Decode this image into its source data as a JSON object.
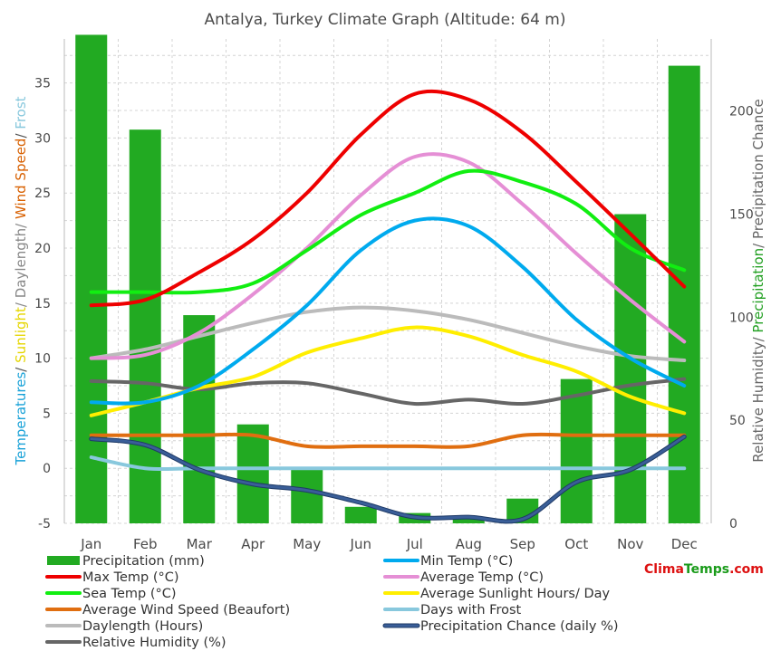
{
  "chart_data": {
    "type": "bar",
    "title": "Antalya, Turkey Climate Graph (Altitude: 64 m)",
    "brand": {
      "part1": "Clima",
      "part2": "Temps",
      "part3": ".com",
      "color1": "#dd1111",
      "color2": "#1a9b1a",
      "color3": "#dd1111"
    },
    "categories": [
      "Jan",
      "Feb",
      "Mar",
      "Apr",
      "May",
      "Jun",
      "Jul",
      "Aug",
      "Sep",
      "Oct",
      "Nov",
      "Dec"
    ],
    "left_axis": {
      "ylim": [
        -5,
        39
      ],
      "ticks": [
        "-5",
        "0",
        "5",
        "10",
        "15",
        "20",
        "25",
        "30",
        "35"
      ],
      "label_parts": [
        {
          "text": "Temperatures",
          "color": "#19a2d8"
        },
        {
          "text": "/ ",
          "color": "#555555"
        },
        {
          "text": "Sunlight",
          "color": "#e5d600"
        },
        {
          "text": "/ Daylength/ ",
          "color": "#888888"
        },
        {
          "text": "Wind Speed",
          "color": "#d86000"
        },
        {
          "text": "/ ",
          "color": "#555555"
        },
        {
          "text": "Frost",
          "color": "#88c8dd"
        }
      ]
    },
    "right_axis": {
      "ylim": [
        0,
        235
      ],
      "ticks": [
        "0",
        "50",
        "100",
        "150",
        "200"
      ],
      "label_parts": [
        {
          "text": "Relative Humidity/ ",
          "color": "#666666"
        },
        {
          "text": "Precipitation",
          "color": "#22a022"
        },
        {
          "text": "/ Precipitation Chance",
          "color": "#666666"
        }
      ]
    },
    "precipitation": {
      "name": "Precipitation (mm)",
      "color": "#22aa22",
      "values": [
        237,
        191,
        101,
        48,
        27,
        8,
        5,
        3,
        12,
        70,
        150,
        222
      ]
    },
    "lines": [
      {
        "key": "maxtemp",
        "name": "Max Temp (°C)",
        "color": "#ee0000",
        "axis": "left",
        "values": [
          14.8,
          15.3,
          17.8,
          20.8,
          25.0,
          30.3,
          34.0,
          33.5,
          30.5,
          26.0,
          21.3,
          16.5
        ]
      },
      {
        "key": "mintemp",
        "name": "Min Temp (°C)",
        "color": "#00aaee",
        "axis": "left",
        "values": [
          6.0,
          6.0,
          7.5,
          10.8,
          14.8,
          19.8,
          22.5,
          22.0,
          18.3,
          13.5,
          10.0,
          7.5
        ]
      },
      {
        "key": "seatemp",
        "name": "Sea Temp (°C)",
        "color": "#11ee11",
        "axis": "left",
        "values": [
          16.0,
          16.0,
          16.0,
          16.8,
          19.8,
          23.0,
          25.0,
          27.0,
          26.0,
          24.0,
          20.0,
          18.0
        ]
      },
      {
        "key": "avgtemp",
        "name": "Average Temp (°C)",
        "color": "#e58fd5",
        "axis": "left",
        "values": [
          10.0,
          10.3,
          12.3,
          15.8,
          20.0,
          24.8,
          28.3,
          27.8,
          24.0,
          19.5,
          15.3,
          11.5
        ]
      },
      {
        "key": "wind",
        "name": "Average Wind Speed (Beaufort)",
        "color": "#e06e10",
        "axis": "left",
        "values": [
          3.0,
          3.0,
          3.0,
          3.0,
          2.0,
          2.0,
          2.0,
          2.0,
          3.0,
          3.0,
          3.0,
          3.0
        ]
      },
      {
        "key": "sun",
        "name": "Average Sunlight Hours/ Day",
        "color": "#ffee00",
        "axis": "left",
        "values": [
          4.8,
          6.0,
          7.3,
          8.3,
          10.5,
          11.8,
          12.8,
          12.0,
          10.3,
          8.8,
          6.5,
          5.0
        ]
      },
      {
        "key": "frost",
        "name": "Days with Frost",
        "color": "#88c8dd",
        "axis": "left",
        "values": [
          1.0,
          0.0,
          0.0,
          0.0,
          0.0,
          0.0,
          0.0,
          0.0,
          0.0,
          0.0,
          0.0,
          0.0
        ]
      },
      {
        "key": "daylength",
        "name": "Daylength (Hours)",
        "color": "#bbbbbb",
        "axis": "left",
        "values": [
          10.0,
          10.8,
          12.0,
          13.2,
          14.2,
          14.6,
          14.3,
          13.5,
          12.3,
          11.1,
          10.2,
          9.8
        ]
      },
      {
        "key": "precipchance",
        "name": "Precipitation Chance (daily %)",
        "color": "#3a5e98",
        "axis": "right",
        "values": [
          41,
          38,
          26,
          19,
          16,
          10,
          3,
          3,
          2,
          20,
          26,
          42
        ]
      },
      {
        "key": "humidity",
        "name": "Relative Humidity (%)",
        "color": "#666666",
        "axis": "right",
        "values": [
          69,
          68,
          65,
          68,
          68,
          63,
          58,
          60,
          58,
          62,
          67,
          70
        ]
      }
    ],
    "legend_order": [
      "precipitation",
      "mintemp",
      "maxtemp",
      "avgtemp",
      "seatemp",
      "sun",
      "wind",
      "frost",
      "daylength",
      "precipchance",
      "humidity"
    ]
  }
}
